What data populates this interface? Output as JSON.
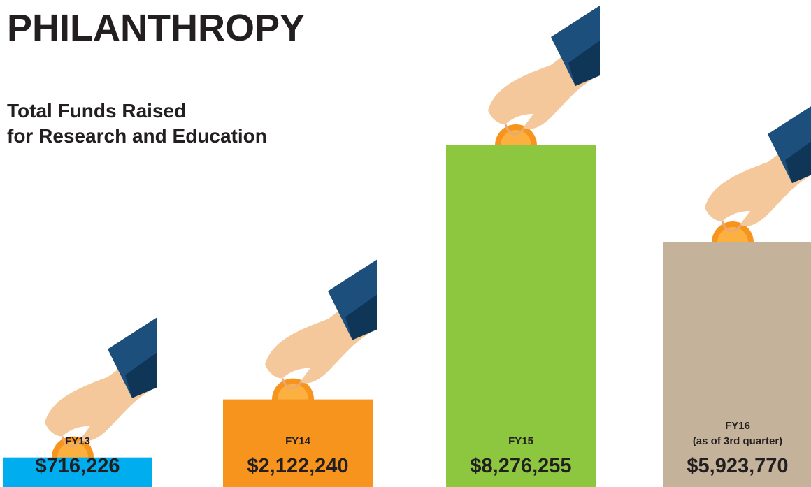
{
  "chart_data": {
    "type": "bar",
    "title": "PHILANTHROPY",
    "subtitle": [
      "Total Funds Raised",
      "for Research and Education"
    ],
    "categories": [
      "FY13",
      "FY14",
      "FY15",
      "FY16"
    ],
    "category_notes": [
      null,
      null,
      null,
      "(as of 3rd quarter)"
    ],
    "values": [
      716226,
      2122240,
      8276255,
      5923770
    ],
    "value_labels": [
      "$716,226",
      "$2,122,240",
      "$8,276,255",
      "$5,923,770"
    ],
    "colors": [
      "#00aeef",
      "#f7941d",
      "#8dc63f",
      "#c4b29a"
    ]
  }
}
